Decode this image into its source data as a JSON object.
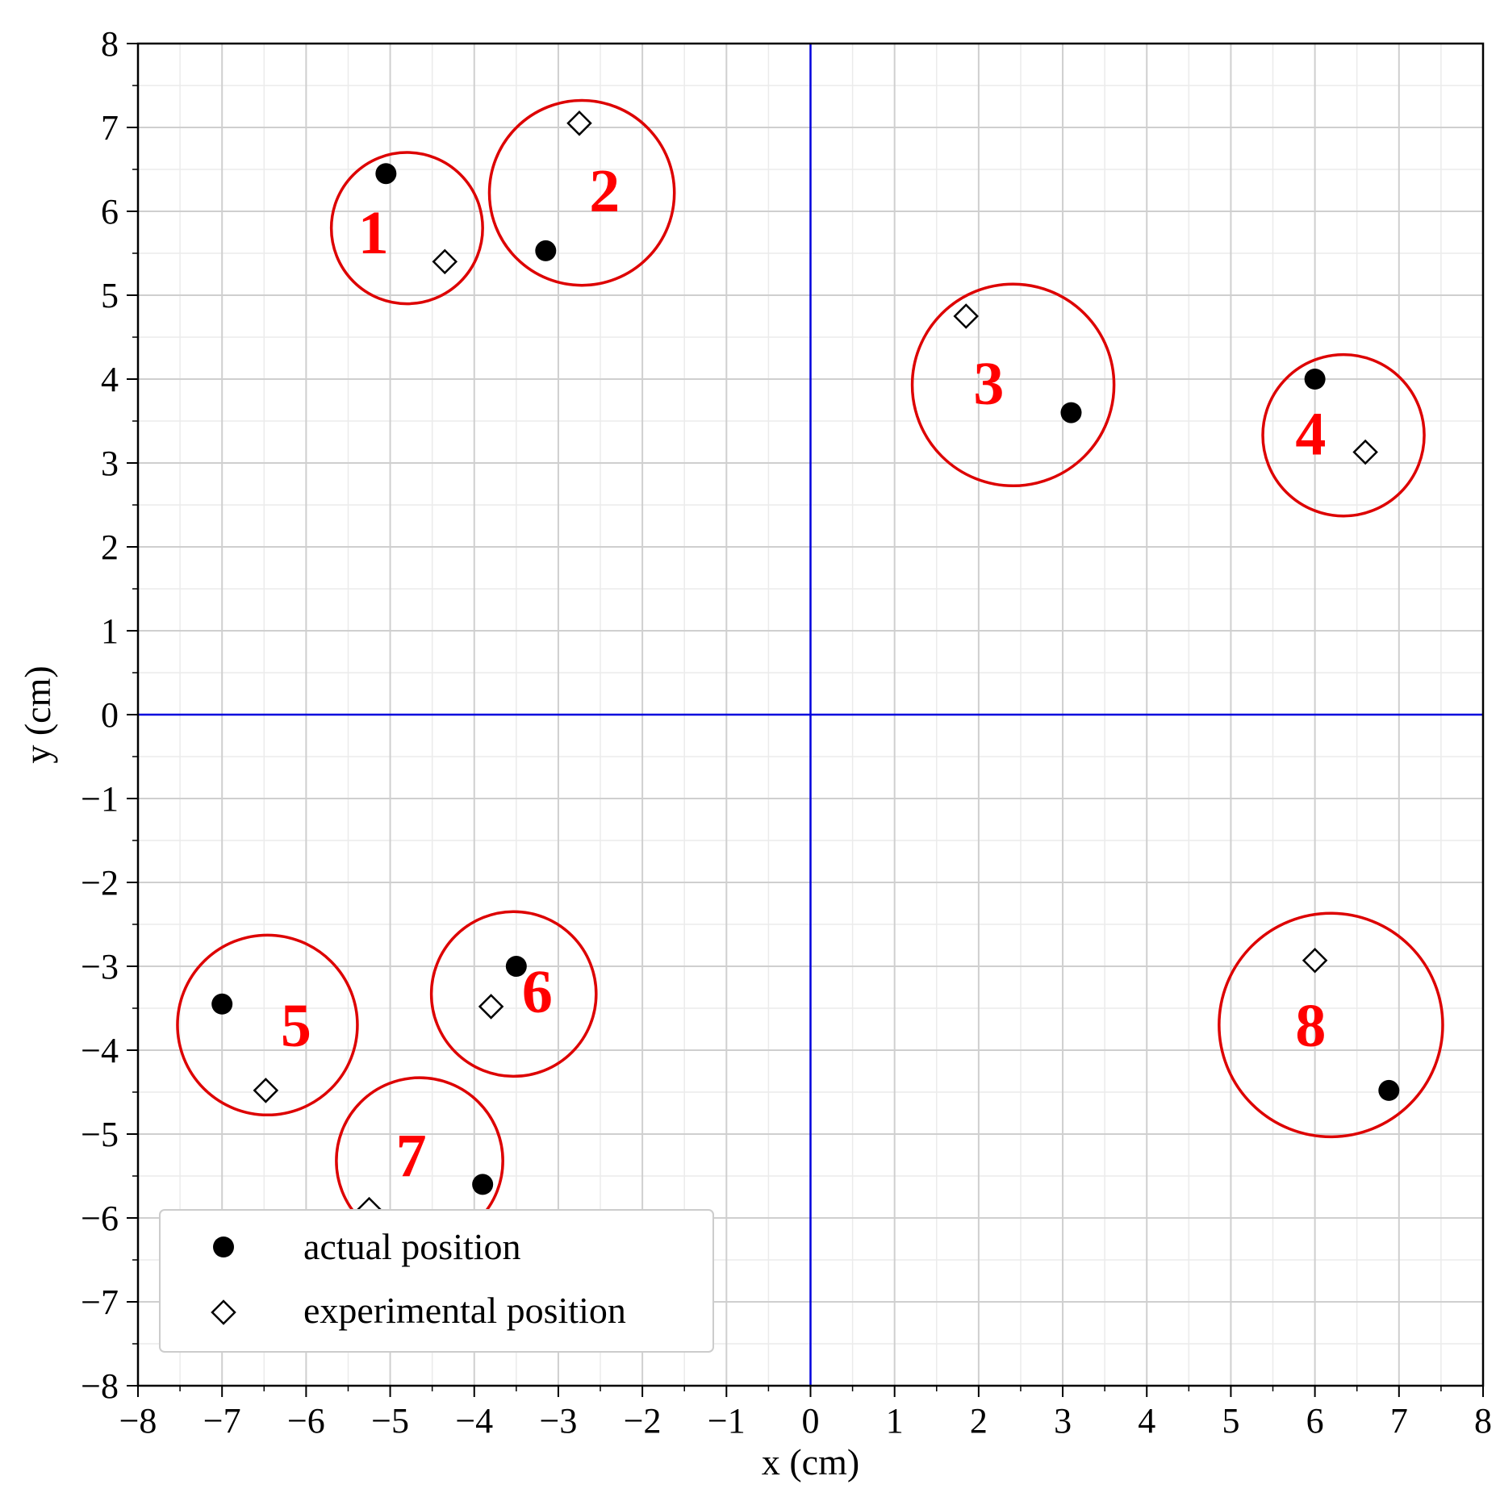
{
  "chart_data": {
    "type": "scatter",
    "xlabel": "x (cm)",
    "ylabel": "y (cm)",
    "xlim": [
      -8,
      8
    ],
    "ylim": [
      -8,
      8
    ],
    "xticks": [
      -8,
      -7,
      -6,
      -5,
      -4,
      -3,
      -2,
      -1,
      0,
      1,
      2,
      3,
      4,
      5,
      6,
      7,
      8
    ],
    "yticks": [
      -8,
      -7,
      -6,
      -5,
      -4,
      -3,
      -2,
      -1,
      0,
      1,
      2,
      3,
      4,
      5,
      6,
      7,
      8
    ],
    "minor_step": 0.5,
    "grid": true,
    "reference_lines": {
      "x": 0,
      "y": 0,
      "color": "#0000dd"
    },
    "legend_position": "lower-left",
    "series": [
      {
        "name": "actual position",
        "marker": "filled-circle",
        "color": "#000000",
        "points": [
          {
            "x": -5.05,
            "y": 6.45
          },
          {
            "x": -3.15,
            "y": 5.53
          },
          {
            "x": 3.1,
            "y": 3.6
          },
          {
            "x": 6.0,
            "y": 4.0
          },
          {
            "x": -7.0,
            "y": -3.45
          },
          {
            "x": -3.5,
            "y": -3.0
          },
          {
            "x": -3.9,
            "y": -5.6
          },
          {
            "x": 6.88,
            "y": -4.48
          }
        ]
      },
      {
        "name": "experimental position",
        "marker": "open-diamond",
        "color": "#000000",
        "points": [
          {
            "x": -4.35,
            "y": 5.4
          },
          {
            "x": -2.75,
            "y": 7.05
          },
          {
            "x": 1.85,
            "y": 4.75
          },
          {
            "x": 6.6,
            "y": 3.13
          },
          {
            "x": -6.48,
            "y": -4.48
          },
          {
            "x": -3.8,
            "y": -3.48
          },
          {
            "x": -5.25,
            "y": -5.9
          },
          {
            "x": 6.0,
            "y": -2.93
          }
        ]
      }
    ],
    "regions": [
      {
        "label": "1",
        "cx": -4.8,
        "cy": 5.8,
        "r": 0.9,
        "label_x": -5.2,
        "label_y": 5.5
      },
      {
        "label": "2",
        "cx": -2.72,
        "cy": 6.22,
        "r": 1.1,
        "label_x": -2.45,
        "label_y": 6.0
      },
      {
        "label": "3",
        "cx": 2.41,
        "cy": 3.93,
        "r": 1.2,
        "label_x": 2.12,
        "label_y": 3.7
      },
      {
        "label": "4",
        "cx": 6.34,
        "cy": 3.33,
        "r": 0.96,
        "label_x": 5.95,
        "label_y": 3.1
      },
      {
        "label": "5",
        "cx": -6.46,
        "cy": -3.7,
        "r": 1.07,
        "label_x": -6.12,
        "label_y": -3.95
      },
      {
        "label": "6",
        "cx": -3.53,
        "cy": -3.33,
        "r": 0.98,
        "label_x": -3.25,
        "label_y": -3.55
      },
      {
        "label": "7",
        "cx": -4.65,
        "cy": -5.32,
        "r": 0.99,
        "label_x": -4.75,
        "label_y": -5.5
      },
      {
        "label": "8",
        "cx": 6.19,
        "cy": -3.7,
        "r": 1.33,
        "label_x": 5.95,
        "label_y": -3.95
      }
    ],
    "region_color": "#dd0000"
  }
}
